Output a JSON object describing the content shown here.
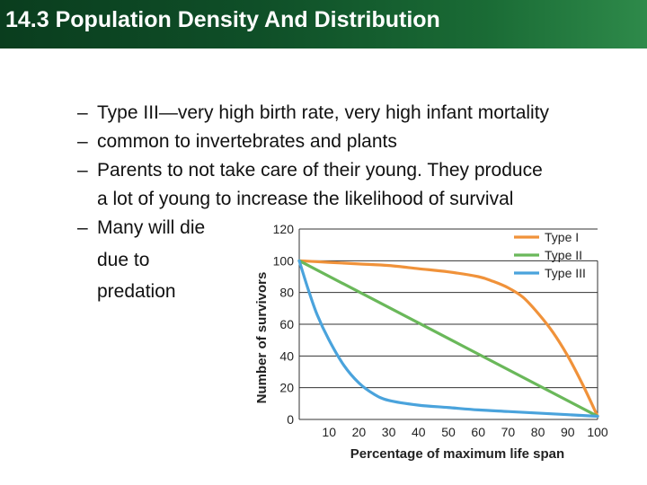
{
  "header": {
    "title": "14.3 Population Density And Distribution"
  },
  "bullets": {
    "dash": "–",
    "items": [
      "Type III—very high birth rate, very high infant mortality",
      "common to invertebrates and plants",
      "Parents to not take care of their young. They produce",
      "Many will die"
    ],
    "item3_line2": "a lot of young to increase the likelihood of survival",
    "item4_cont": [
      "due to",
      "predation"
    ]
  },
  "colors": {
    "type1": "#f0923a",
    "type2": "#6ab85a",
    "type3": "#4aa3dc",
    "grid": "#333333"
  },
  "chart_data": {
    "type": "line",
    "title": "",
    "xlabel": "Percentage of maximum life span",
    "ylabel": "Number of survivors",
    "xlim": [
      0,
      100
    ],
    "ylim": [
      0,
      120
    ],
    "x_ticks": [
      10,
      20,
      30,
      40,
      50,
      60,
      70,
      80,
      90,
      100
    ],
    "y_ticks": [
      0,
      20,
      40,
      60,
      80,
      100,
      120
    ],
    "grid": true,
    "legend": "top-right",
    "series": [
      {
        "name": "Type I",
        "color": "#f0923a",
        "x": [
          0,
          10,
          20,
          30,
          40,
          50,
          60,
          65,
          70,
          75,
          80,
          85,
          90,
          95,
          100
        ],
        "y": [
          100,
          99,
          98,
          97,
          95,
          93,
          90,
          87,
          83,
          77,
          67,
          55,
          40,
          22,
          2
        ]
      },
      {
        "name": "Type II",
        "color": "#6ab85a",
        "x": [
          0,
          100
        ],
        "y": [
          100,
          2
        ]
      },
      {
        "name": "Type III",
        "color": "#4aa3dc",
        "x": [
          0,
          3,
          6,
          10,
          15,
          20,
          25,
          30,
          40,
          50,
          60,
          70,
          80,
          90,
          100
        ],
        "y": [
          100,
          82,
          66,
          50,
          34,
          23,
          16,
          12,
          9,
          7.5,
          6,
          5,
          4,
          3,
          2
        ]
      }
    ]
  }
}
